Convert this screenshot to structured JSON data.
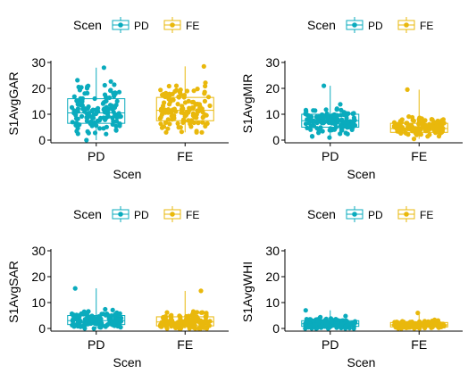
{
  "colors": {
    "pd": "#0aabbd",
    "fe": "#e9b80c"
  },
  "legend": {
    "title": "Scen",
    "items": [
      "PD",
      "FE"
    ]
  },
  "chart_data": [
    {
      "type": "box",
      "legend_position": "top",
      "xlabel": "Scen",
      "ylabel": "S1AvgGAR",
      "categories": [
        "PD",
        "FE"
      ],
      "ylim": [
        0,
        30
      ],
      "yticks": [
        "0",
        "10",
        "20",
        "30"
      ],
      "grid": false,
      "series": [
        {
          "name": "PD",
          "min": 0,
          "q1": 6.5,
          "median": 10.5,
          "q3": 16,
          "max": 28,
          "n_points": 140
        },
        {
          "name": "FE",
          "min": 3,
          "q1": 7.5,
          "median": 11.5,
          "q3": 16.5,
          "max": 28.5,
          "n_points": 140
        }
      ]
    },
    {
      "type": "box",
      "legend_position": "top",
      "xlabel": "Scen",
      "ylabel": "S1AvgMIR",
      "categories": [
        "PD",
        "FE"
      ],
      "ylim": [
        0,
        30
      ],
      "yticks": [
        "0",
        "10",
        "20",
        "30"
      ],
      "grid": false,
      "series": [
        {
          "name": "PD",
          "min": 1,
          "q1": 5,
          "median": 7.5,
          "q3": 10,
          "max": 21,
          "n_points": 140
        },
        {
          "name": "FE",
          "min": 0.5,
          "q1": 3,
          "median": 4.5,
          "q3": 6.5,
          "max": 19.5,
          "n_points": 140
        }
      ]
    },
    {
      "type": "box",
      "legend_position": "top",
      "xlabel": "Scen",
      "ylabel": "S1AvgSAR",
      "categories": [
        "PD",
        "FE"
      ],
      "ylim": [
        0,
        30
      ],
      "yticks": [
        "0",
        "10",
        "20",
        "30"
      ],
      "grid": false,
      "series": [
        {
          "name": "PD",
          "min": 0,
          "q1": 1.5,
          "median": 3,
          "q3": 5,
          "max": 15.5,
          "n_points": 140
        },
        {
          "name": "FE",
          "min": 0,
          "q1": 1,
          "median": 2.5,
          "q3": 4.5,
          "max": 14.5,
          "n_points": 140
        }
      ]
    },
    {
      "type": "box",
      "legend_position": "top",
      "xlabel": "Scen",
      "ylabel": "S1AvgWHI",
      "categories": [
        "PD",
        "FE"
      ],
      "ylim": [
        0,
        30
      ],
      "yticks": [
        "0",
        "10",
        "20",
        "30"
      ],
      "grid": false,
      "series": [
        {
          "name": "PD",
          "min": 0,
          "q1": 0.8,
          "median": 1.8,
          "q3": 3,
          "max": 7,
          "n_points": 140
        },
        {
          "name": "FE",
          "min": 0,
          "q1": 0.6,
          "median": 1.4,
          "q3": 2.3,
          "max": 6,
          "n_points": 140
        }
      ]
    }
  ]
}
